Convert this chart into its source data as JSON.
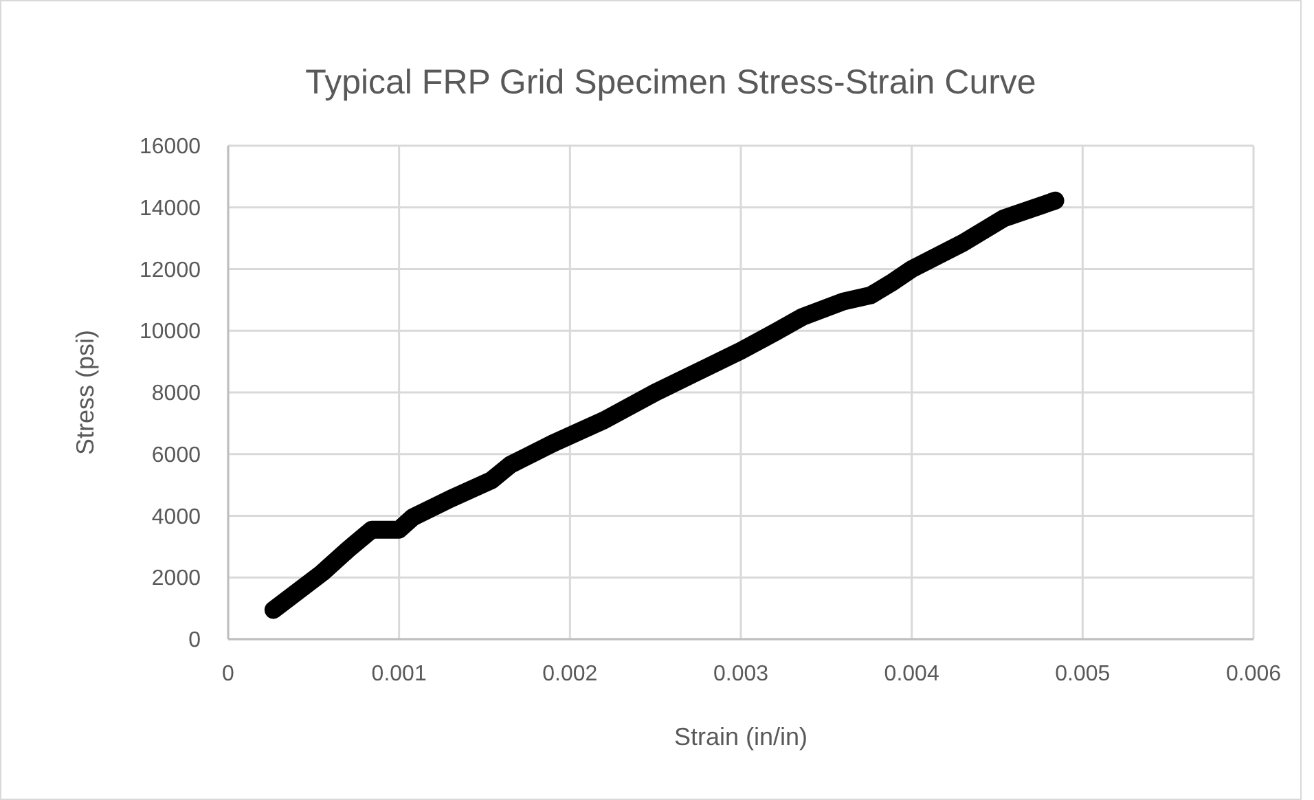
{
  "chart_data": {
    "type": "line",
    "title": "Typical FRP Grid Specimen Stress-Strain Curve",
    "xlabel": "Strain (in/in)",
    "ylabel": "Stress (psi)",
    "series": [
      {
        "color": "#000000",
        "x": [
          0.000265,
          0.00055,
          0.0007,
          0.00084,
          0.001,
          0.00108,
          0.0013,
          0.00154,
          0.00165,
          0.0019,
          0.0022,
          0.0025,
          0.003,
          0.0032,
          0.00336,
          0.0036,
          0.00376,
          0.00388,
          0.004,
          0.0043,
          0.00454,
          0.00484
        ],
        "values": [
          950,
          2150,
          2900,
          3550,
          3550,
          3950,
          4550,
          5150,
          5650,
          6350,
          7100,
          8000,
          9350,
          9950,
          10450,
          10950,
          11150,
          11550,
          12000,
          12850,
          13650,
          14220
        ]
      }
    ],
    "xlim": [
      0,
      0.006
    ],
    "xticks": [
      0,
      0.001,
      0.002,
      0.003,
      0.004,
      0.005,
      0.006
    ],
    "ylim": [
      0,
      16000
    ],
    "yticks": [
      0,
      2000,
      4000,
      6000,
      8000,
      10000,
      12000,
      14000,
      16000
    ],
    "grid": true,
    "line_style": "solid"
  }
}
